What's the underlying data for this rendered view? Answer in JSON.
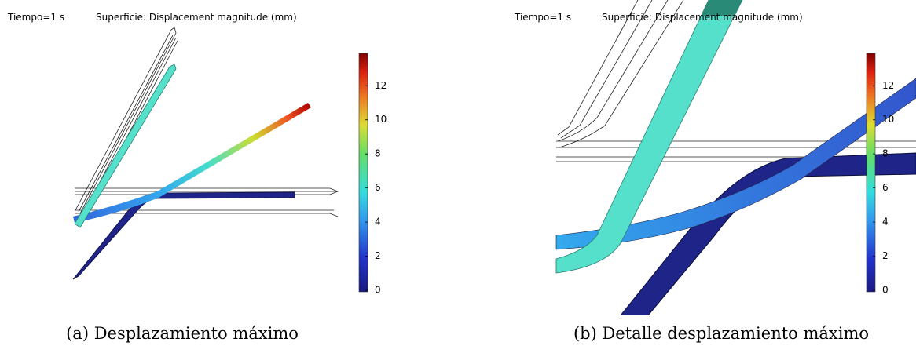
{
  "panels": [
    {
      "time_label": "Tiempo=1 s",
      "surface_label": "Superficie: Displacement magnitude (mm)",
      "colorbar": {
        "range": [
          0,
          13.9
        ],
        "ticks": [
          0,
          2,
          4,
          6,
          8,
          10,
          12
        ]
      },
      "caption": "(a) Desplazamiento máximo"
    },
    {
      "time_label": "Tiempo=1 s",
      "surface_label": "Superficie: Displacement magnitude (mm)",
      "colorbar": {
        "range": [
          0,
          13.9
        ],
        "ticks": [
          0,
          2,
          4,
          6,
          8,
          10,
          12
        ]
      },
      "caption": "(b) Detalle desplazamiento máximo"
    }
  ]
}
